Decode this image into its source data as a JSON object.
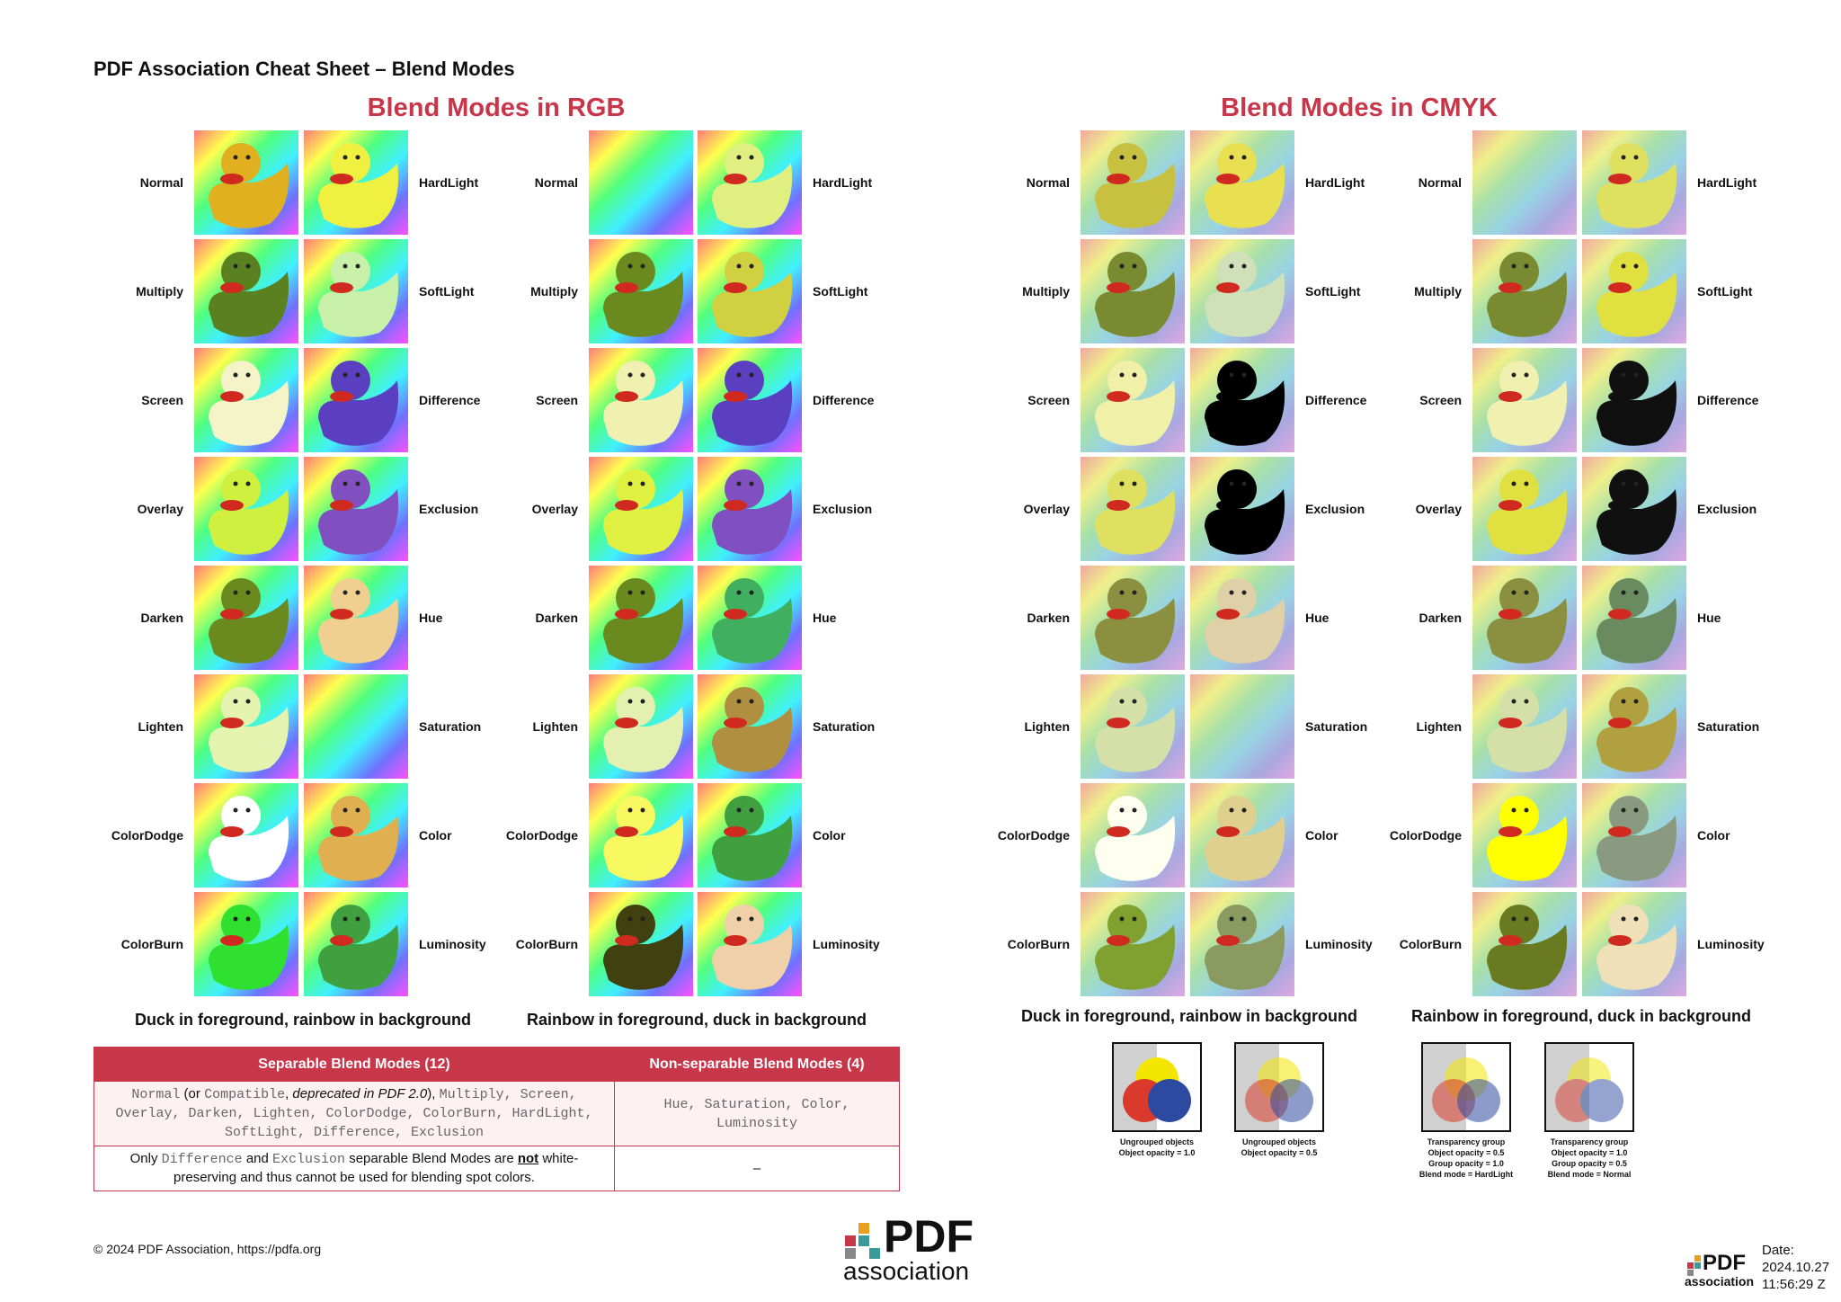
{
  "title": "PDF Association Cheat Sheet – Blend Modes",
  "sections": [
    {
      "heading": "Blend Modes in RGB",
      "grids": [
        {
          "left": [
            "Normal",
            "Multiply",
            "Screen",
            "Overlay",
            "Darken",
            "Lighten",
            "ColorDodge",
            "ColorBurn"
          ],
          "right": [
            "HardLight",
            "SoftLight",
            "Difference",
            "Exclusion",
            "Hue",
            "Saturation",
            "Color",
            "Luminosity"
          ],
          "caption": "Duck in foreground, rainbow in background"
        },
        {
          "left": [
            "Normal",
            "Multiply",
            "Screen",
            "Overlay",
            "Darken",
            "Lighten",
            "ColorDodge",
            "ColorBurn"
          ],
          "right": [
            "HardLight",
            "SoftLight",
            "Difference",
            "Exclusion",
            "Hue",
            "Saturation",
            "Color",
            "Luminosity"
          ],
          "caption": "Rainbow in foreground, duck in background"
        }
      ]
    },
    {
      "heading": "Blend Modes in CMYK",
      "grids": [
        {
          "left": [
            "Normal",
            "Multiply",
            "Screen",
            "Overlay",
            "Darken",
            "Lighten",
            "ColorDodge",
            "ColorBurn"
          ],
          "right": [
            "HardLight",
            "SoftLight",
            "Difference",
            "Exclusion",
            "Hue",
            "Saturation",
            "Color",
            "Luminosity"
          ],
          "caption": "Duck in foreground, rainbow in background"
        },
        {
          "left": [
            "Normal",
            "Multiply",
            "Screen",
            "Overlay",
            "Darken",
            "Lighten",
            "ColorDodge",
            "ColorBurn"
          ],
          "right": [
            "HardLight",
            "SoftLight",
            "Difference",
            "Exclusion",
            "Hue",
            "Saturation",
            "Color",
            "Luminosity"
          ],
          "caption": "Rainbow in foreground, duck in background"
        }
      ]
    }
  ],
  "table": {
    "headers": [
      "Separable Blend Modes (12)",
      "Non-separable Blend Modes (4)"
    ],
    "rows": [
      [
        [
          {
            "text": "Normal",
            "font": "mono"
          },
          {
            "text": " (or ",
            "font": "sans"
          },
          {
            "text": "Compatible",
            "font": "mono"
          },
          {
            "text": ", ",
            "font": "sans"
          },
          {
            "text": "deprecated in PDF 2.0",
            "font": "italic"
          },
          {
            "text": "), ",
            "font": "sans"
          },
          {
            "text": "Multiply, Screen, Overlay, Darken, Lighten, ColorDodge, ColorBurn, HardLight, SoftLight, Difference, Exclusion",
            "font": "mono"
          }
        ],
        [
          {
            "text": "Hue, Saturation, Color, Luminosity",
            "font": "mono"
          }
        ]
      ],
      [
        [
          {
            "text": "Only ",
            "font": "sans"
          },
          {
            "text": "Difference",
            "font": "mono"
          },
          {
            "text": " and ",
            "font": "sans"
          },
          {
            "text": "Exclusion",
            "font": "mono"
          },
          {
            "text": " separable Blend Modes are ",
            "font": "sans"
          },
          {
            "text": "not",
            "font": "emphasis"
          },
          {
            "text": " white-preserving and thus cannot be used for blending spot colors.",
            "font": "sans"
          }
        ],
        [
          {
            "text": "–",
            "font": "sans"
          }
        ]
      ]
    ]
  },
  "diagrams": [
    [
      "Ungrouped objects",
      "Object opacity = 1.0"
    ],
    [
      "Ungrouped objects",
      "Object opacity = 0.5"
    ],
    [
      "Transparency group",
      "Object opacity = 0.5",
      "Group opacity = 1.0",
      "Blend mode = HardLight"
    ],
    [
      "Transparency group",
      "Object opacity = 1.0",
      "Group opacity = 0.5",
      "Blend mode = Normal"
    ]
  ],
  "footer": {
    "copyright": "© 2024 PDF Association, https://pdfa.org",
    "logo": [
      "PDF",
      "association"
    ],
    "date": [
      "Date:",
      "2024.10.27",
      "11:56:29 Z"
    ]
  }
}
